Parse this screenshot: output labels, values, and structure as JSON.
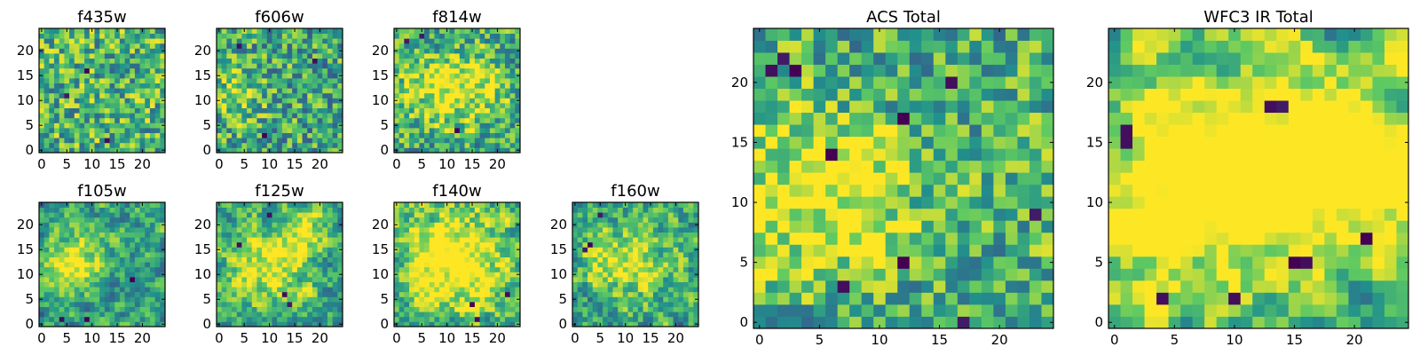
{
  "figure_title": "",
  "colormap": {
    "name": "viridis",
    "stops": [
      "#440154",
      "#3b528b",
      "#21918c",
      "#5ec962",
      "#fde725"
    ]
  },
  "chart_data": [
    {
      "type": "heatmap",
      "title": "f435w",
      "xlabel": "",
      "ylabel": "",
      "xlim": [
        0,
        24
      ],
      "ylim": [
        0,
        24
      ],
      "grid_size": [
        25,
        25
      ],
      "xticks": [
        0,
        5,
        10,
        15,
        20
      ],
      "yticks": [
        0,
        5,
        10,
        15,
        20
      ],
      "xtick_labels": [
        "0",
        "5",
        "10",
        "15",
        "20"
      ],
      "ytick_labels": [
        "0",
        "5",
        "10",
        "15",
        "20"
      ],
      "pattern": {
        "seed": 11,
        "smooth": 0.0,
        "brightness": 0.08,
        "hot_spots": [],
        "dark_spots": [
          [
            9,
            16
          ],
          [
            13,
            2
          ],
          [
            5,
            11
          ]
        ]
      }
    },
    {
      "type": "heatmap",
      "title": "f606w",
      "xlabel": "",
      "ylabel": "",
      "xlim": [
        0,
        24
      ],
      "ylim": [
        0,
        24
      ],
      "grid_size": [
        25,
        25
      ],
      "xticks": [
        0,
        5,
        10,
        15,
        20
      ],
      "yticks": [
        0,
        5,
        10,
        15,
        20
      ],
      "xtick_labels": [
        "0",
        "5",
        "10",
        "15",
        "20"
      ],
      "ytick_labels": [
        "0",
        "5",
        "10",
        "15",
        "20"
      ],
      "pattern": {
        "seed": 23,
        "smooth": 0.15,
        "brightness": 0.02,
        "hot_spots": [
          [
            3,
            11,
            4,
            0.25
          ]
        ],
        "dark_spots": [
          [
            4,
            21
          ],
          [
            19,
            18
          ],
          [
            9,
            3
          ]
        ]
      }
    },
    {
      "type": "heatmap",
      "title": "f814w",
      "xlabel": "",
      "ylabel": "",
      "xlim": [
        0,
        24
      ],
      "ylim": [
        0,
        24
      ],
      "grid_size": [
        25,
        25
      ],
      "xticks": [
        0,
        5,
        10,
        15,
        20
      ],
      "yticks": [
        0,
        5,
        10,
        15,
        20
      ],
      "xtick_labels": [
        "0",
        "5",
        "10",
        "15",
        "20"
      ],
      "ytick_labels": [
        "0",
        "5",
        "10",
        "15",
        "20"
      ],
      "pattern": {
        "seed": 37,
        "smooth": 0.3,
        "brightness": 0.0,
        "hot_spots": [
          [
            8,
            12,
            6,
            0.3
          ],
          [
            16,
            13,
            5,
            0.25
          ]
        ],
        "dark_spots": [
          [
            2,
            22
          ],
          [
            5,
            23
          ],
          [
            12,
            4
          ]
        ]
      }
    },
    {
      "type": "heatmap",
      "title": "f105w",
      "xlabel": "",
      "ylabel": "",
      "xlim": [
        0,
        24
      ],
      "ylim": [
        0,
        24
      ],
      "grid_size": [
        25,
        25
      ],
      "xticks": [
        0,
        5,
        10,
        15,
        20
      ],
      "yticks": [
        0,
        5,
        10,
        15,
        20
      ],
      "xtick_labels": [
        "0",
        "5",
        "10",
        "15",
        "20"
      ],
      "ytick_labels": [
        "0",
        "5",
        "10",
        "15",
        "20"
      ],
      "pattern": {
        "seed": 41,
        "smooth": 0.6,
        "brightness": -0.02,
        "hot_spots": [
          [
            4,
            10,
            4,
            0.35
          ],
          [
            9,
            15,
            4,
            0.3
          ]
        ],
        "dark_spots": [
          [
            18,
            9
          ],
          [
            4,
            1
          ],
          [
            9,
            1
          ]
        ]
      }
    },
    {
      "type": "heatmap",
      "title": "f125w",
      "xlabel": "",
      "ylabel": "",
      "xlim": [
        0,
        24
      ],
      "ylim": [
        0,
        24
      ],
      "grid_size": [
        25,
        25
      ],
      "xticks": [
        0,
        5,
        10,
        15,
        20
      ],
      "yticks": [
        0,
        5,
        10,
        15,
        20
      ],
      "xtick_labels": [
        "0",
        "5",
        "10",
        "15",
        "20"
      ],
      "ytick_labels": [
        "0",
        "5",
        "10",
        "15",
        "20"
      ],
      "pattern": {
        "seed": 53,
        "smooth": 0.55,
        "brightness": 0.04,
        "hot_spots": [
          [
            10,
            11,
            5,
            0.35
          ],
          [
            17,
            19,
            4,
            0.3
          ]
        ],
        "dark_spots": [
          [
            13,
            6
          ],
          [
            14,
            4
          ],
          [
            4,
            16
          ],
          [
            10,
            22
          ]
        ]
      }
    },
    {
      "type": "heatmap",
      "title": "f140w",
      "xlabel": "",
      "ylabel": "",
      "xlim": [
        0,
        24
      ],
      "ylim": [
        0,
        24
      ],
      "grid_size": [
        25,
        25
      ],
      "xticks": [
        0,
        5,
        10,
        15,
        20
      ],
      "yticks": [
        0,
        5,
        10,
        15,
        20
      ],
      "xtick_labels": [
        "0",
        "5",
        "10",
        "15",
        "20"
      ],
      "ytick_labels": [
        "0",
        "5",
        "10",
        "15",
        "20"
      ],
      "pattern": {
        "seed": 67,
        "smooth": 0.6,
        "brightness": 0.08,
        "hot_spots": [
          [
            13,
            12,
            6,
            0.4
          ],
          [
            6,
            15,
            4,
            0.3
          ]
        ],
        "dark_spots": [
          [
            15,
            4
          ],
          [
            16,
            1
          ],
          [
            22,
            6
          ]
        ]
      }
    },
    {
      "type": "heatmap",
      "title": "f160w",
      "xlabel": "",
      "ylabel": "",
      "xlim": [
        0,
        24
      ],
      "ylim": [
        0,
        24
      ],
      "grid_size": [
        25,
        25
      ],
      "xticks": [
        0,
        5,
        10,
        15,
        20
      ],
      "yticks": [
        0,
        5,
        10,
        15,
        20
      ],
      "xtick_labels": [
        "0",
        "5",
        "10",
        "15",
        "20"
      ],
      "ytick_labels": [
        "0",
        "5",
        "10",
        "15",
        "20"
      ],
      "pattern": {
        "seed": 79,
        "smooth": 0.45,
        "brightness": 0.0,
        "hot_spots": [
          [
            12,
            12,
            5,
            0.35
          ],
          [
            5,
            13,
            3,
            0.25
          ]
        ],
        "dark_spots": [
          [
            2,
            15
          ],
          [
            3,
            16
          ],
          [
            5,
            22
          ]
        ]
      }
    },
    {
      "type": "heatmap",
      "title": "ACS Total",
      "xlabel": "",
      "ylabel": "",
      "xlim": [
        0,
        24
      ],
      "ylim": [
        0,
        24
      ],
      "grid_size": [
        25,
        25
      ],
      "xticks": [
        0,
        5,
        10,
        15,
        20
      ],
      "yticks": [
        0,
        5,
        10,
        15,
        20
      ],
      "xtick_labels": [
        "0",
        "5",
        "10",
        "15",
        "20"
      ],
      "ytick_labels": [
        "0",
        "5",
        "10",
        "15",
        "20"
      ],
      "pattern": {
        "seed": 97,
        "smooth": 0.25,
        "brightness": 0.05,
        "hot_spots": [
          [
            3,
            10,
            5,
            0.35
          ],
          [
            9,
            12,
            3,
            0.2
          ]
        ],
        "dark_spots": [
          [
            2,
            22
          ],
          [
            3,
            21
          ],
          [
            1,
            21
          ],
          [
            12,
            17
          ],
          [
            6,
            14
          ],
          [
            7,
            3
          ],
          [
            17,
            0
          ],
          [
            23,
            9
          ],
          [
            12,
            5
          ],
          [
            16,
            20
          ]
        ]
      }
    },
    {
      "type": "heatmap",
      "title": "WFC3 IR Total",
      "xlabel": "",
      "ylabel": "",
      "xlim": [
        0,
        24
      ],
      "ylim": [
        0,
        24
      ],
      "grid_size": [
        25,
        25
      ],
      "xticks": [
        0,
        5,
        10,
        15,
        20
      ],
      "yticks": [
        0,
        5,
        10,
        15,
        20
      ],
      "xtick_labels": [
        "0",
        "5",
        "10",
        "15",
        "20"
      ],
      "ytick_labels": [
        "0",
        "5",
        "10",
        "15",
        "20"
      ],
      "pattern": {
        "seed": 113,
        "smooth": 0.7,
        "brightness": 0.05,
        "hot_spots": [
          [
            4,
            11,
            6,
            0.45
          ],
          [
            15,
            13,
            6,
            0.45
          ],
          [
            21,
            14,
            4,
            0.3
          ]
        ],
        "dark_spots": [
          [
            1,
            15
          ],
          [
            1,
            16
          ],
          [
            13,
            18
          ],
          [
            14,
            18
          ],
          [
            15,
            5
          ],
          [
            16,
            5
          ],
          [
            4,
            2
          ],
          [
            21,
            7
          ],
          [
            10,
            2
          ]
        ]
      }
    }
  ]
}
